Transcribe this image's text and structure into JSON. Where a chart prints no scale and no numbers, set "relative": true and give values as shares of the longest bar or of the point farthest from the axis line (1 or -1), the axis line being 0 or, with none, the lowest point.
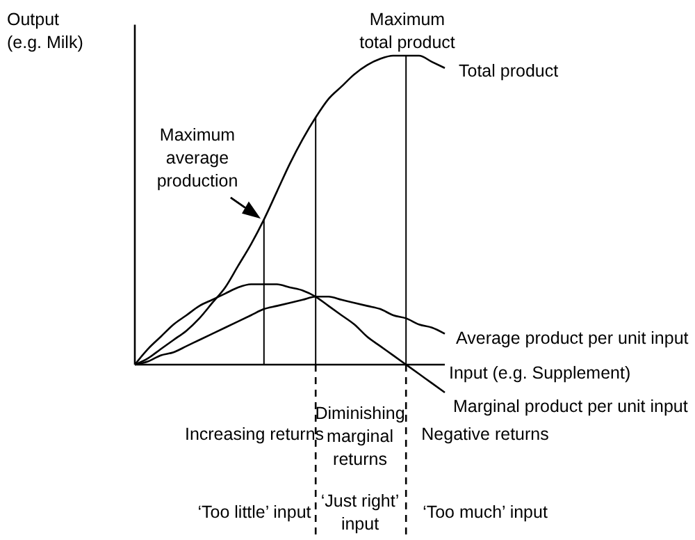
{
  "chart_data": {
    "type": "line",
    "relative": true,
    "xlabel": "Input (e.g. Supplement)",
    "ylabel": "Output\n(e.g. Milk)",
    "categories": [
      null,
      null,
      null,
      null,
      null,
      null,
      null,
      null,
      null,
      null,
      null,
      null,
      null,
      null,
      null,
      null,
      null,
      null,
      null,
      null,
      null,
      null,
      null,
      null,
      null
    ],
    "series": [
      {
        "name": "Total product",
        "color": "#000000",
        "values": [
          0,
          0.02,
          0.05,
          0.08,
          0.11,
          0.15,
          0.2,
          0.25,
          0.32,
          0.39,
          0.47,
          0.56,
          0.65,
          0.73,
          0.8,
          0.86,
          0.9,
          0.94,
          0.97,
          0.99,
          1.0,
          1,
          1.0,
          0.98,
          0.96
        ]
      },
      {
        "name": "Average product per unit input",
        "color": "#000000",
        "values": [
          0,
          0.01,
          0.03,
          0.04,
          0.06,
          0.08,
          0.1,
          0.12,
          0.14,
          0.16,
          0.18,
          0.19,
          0.2,
          0.21,
          0.22,
          0.22,
          0.21,
          0.2,
          0.19,
          0.18,
          0.16,
          0.15,
          0.13,
          0.12,
          0.1
        ]
      },
      {
        "name": "Marginal product per unit input",
        "color": "#000000",
        "values": [
          0,
          0.05,
          0.09,
          0.13,
          0.16,
          0.19,
          0.21,
          0.23,
          0.25,
          0.26,
          0.26,
          0.26,
          0.25,
          0.24,
          0.22,
          0.19,
          0.16,
          0.13,
          0.09,
          0.06,
          0.03,
          0,
          -0.03,
          -0.06,
          -0.09
        ]
      }
    ],
    "annotations": [
      "Maximum\ntotal product",
      "Maximum\naverage\nproduction",
      "Increasing returns",
      "Diminishing\nmarginal\nreturns",
      "Negative returns",
      "‘Too little’ input",
      "‘Just right’\ninput",
      "‘Too much’ input"
    ]
  }
}
